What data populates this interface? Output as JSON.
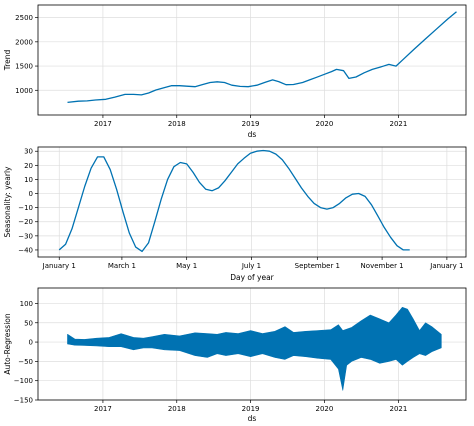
{
  "colors": {
    "line": "#0072b2",
    "fill": "#0072b2",
    "grid": "#dddddd",
    "axis": "#000000",
    "background": "#ffffff"
  },
  "chart_data": [
    {
      "type": "line",
      "xlabel": "ds",
      "ylabel": "Trend",
      "grid": true,
      "x_axis": "date",
      "xlim": [
        "2016-02-15",
        "2021-12-01"
      ],
      "ylim": [
        490,
        2760
      ],
      "xticks": [
        {
          "value": "2017-01-01",
          "label": "2017"
        },
        {
          "value": "2018-01-01",
          "label": "2018"
        },
        {
          "value": "2019-01-01",
          "label": "2019"
        },
        {
          "value": "2020-01-01",
          "label": "2020"
        },
        {
          "value": "2021-01-01",
          "label": "2021"
        }
      ],
      "yticks": [
        1000,
        1500,
        2000,
        2500
      ],
      "series": [
        {
          "points": [
            [
              "2016-07-10",
              750
            ],
            [
              "2016-09-01",
              775
            ],
            [
              "2016-10-15",
              780
            ],
            [
              "2016-11-25",
              800
            ],
            [
              "2017-01-15",
              815
            ],
            [
              "2017-03-01",
              860
            ],
            [
              "2017-04-20",
              915
            ],
            [
              "2017-06-01",
              915
            ],
            [
              "2017-07-10",
              905
            ],
            [
              "2017-08-15",
              945
            ],
            [
              "2017-09-20",
              1005
            ],
            [
              "2017-11-01",
              1055
            ],
            [
              "2017-12-05",
              1095
            ],
            [
              "2018-01-15",
              1095
            ],
            [
              "2018-02-20",
              1085
            ],
            [
              "2018-04-01",
              1075
            ],
            [
              "2018-05-10",
              1120
            ],
            [
              "2018-06-15",
              1160
            ],
            [
              "2018-07-20",
              1175
            ],
            [
              "2018-08-25",
              1160
            ],
            [
              "2018-09-30",
              1105
            ],
            [
              "2018-11-10",
              1080
            ],
            [
              "2018-12-20",
              1075
            ],
            [
              "2019-02-01",
              1105
            ],
            [
              "2019-03-15",
              1165
            ],
            [
              "2019-04-20",
              1215
            ],
            [
              "2019-05-20",
              1180
            ],
            [
              "2019-06-25",
              1115
            ],
            [
              "2019-08-01",
              1120
            ],
            [
              "2019-09-15",
              1160
            ],
            [
              "2019-10-20",
              1215
            ],
            [
              "2019-11-25",
              1270
            ],
            [
              "2020-01-01",
              1330
            ],
            [
              "2020-02-05",
              1385
            ],
            [
              "2020-03-01",
              1430
            ],
            [
              "2020-04-05",
              1405
            ],
            [
              "2020-05-01",
              1245
            ],
            [
              "2020-06-05",
              1275
            ],
            [
              "2020-07-15",
              1360
            ],
            [
              "2020-08-25",
              1430
            ],
            [
              "2020-10-05",
              1480
            ],
            [
              "2020-11-15",
              1535
            ],
            [
              "2020-12-20",
              1500
            ],
            [
              "2021-01-25",
              1640
            ],
            [
              "2021-03-20",
              1850
            ],
            [
              "2021-05-15",
              2060
            ],
            [
              "2021-07-10",
              2270
            ],
            [
              "2021-09-01",
              2470
            ],
            [
              "2021-10-15",
              2620
            ]
          ]
        }
      ]
    },
    {
      "type": "line",
      "xlabel": "Day of year",
      "ylabel": "Seasonality: yearly",
      "grid": true,
      "xlim": [
        -20,
        383
      ],
      "ylim": [
        -45,
        33
      ],
      "xticks": [
        {
          "value": 0,
          "label": "January 1"
        },
        {
          "value": 59,
          "label": "March 1"
        },
        {
          "value": 120,
          "label": "May 1"
        },
        {
          "value": 181,
          "label": "July 1"
        },
        {
          "value": 243,
          "label": "September 1"
        },
        {
          "value": 304,
          "label": "November 1"
        },
        {
          "value": 365,
          "label": "January 1"
        }
      ],
      "yticks": [
        -40,
        -30,
        -20,
        -10,
        0,
        10,
        20,
        30
      ],
      "series": [
        {
          "points": [
            [
              0,
              -40
            ],
            [
              6,
              -36
            ],
            [
              12,
              -25
            ],
            [
              18,
              -10
            ],
            [
              24,
              5
            ],
            [
              30,
              18
            ],
            [
              36,
              26
            ],
            [
              42,
              26
            ],
            [
              48,
              17
            ],
            [
              54,
              3
            ],
            [
              60,
              -13
            ],
            [
              66,
              -28
            ],
            [
              72,
              -38
            ],
            [
              78,
              -41
            ],
            [
              84,
              -35
            ],
            [
              90,
              -20
            ],
            [
              96,
              -4
            ],
            [
              102,
              10
            ],
            [
              108,
              19
            ],
            [
              114,
              22
            ],
            [
              120,
              21
            ],
            [
              126,
              15
            ],
            [
              132,
              8
            ],
            [
              138,
              3
            ],
            [
              144,
              2
            ],
            [
              150,
              4
            ],
            [
              156,
              9
            ],
            [
              162,
              15
            ],
            [
              168,
              21
            ],
            [
              174,
              25
            ],
            [
              180,
              28.5
            ],
            [
              186,
              30
            ],
            [
              192,
              30.5
            ],
            [
              198,
              30
            ],
            [
              204,
              28
            ],
            [
              210,
              24
            ],
            [
              216,
              18
            ],
            [
              222,
              11
            ],
            [
              228,
              4
            ],
            [
              234,
              -2
            ],
            [
              240,
              -7
            ],
            [
              246,
              -10
            ],
            [
              252,
              -11
            ],
            [
              258,
              -10
            ],
            [
              264,
              -7
            ],
            [
              270,
              -3
            ],
            [
              276,
              -0.5
            ],
            [
              282,
              0
            ],
            [
              288,
              -2
            ],
            [
              294,
              -8
            ],
            [
              300,
              -16
            ],
            [
              306,
              -24
            ],
            [
              312,
              -31
            ],
            [
              318,
              -37
            ],
            [
              324,
              -40
            ],
            [
              330,
              -40
            ]
          ]
        }
      ]
    },
    {
      "type": "area",
      "xlabel": "ds",
      "ylabel": "Auto-Regression",
      "grid": true,
      "x_axis": "date",
      "xlim": [
        "2016-02-15",
        "2021-12-01"
      ],
      "ylim": [
        -150,
        140
      ],
      "xticks": [
        {
          "value": "2017-01-01",
          "label": "2017"
        },
        {
          "value": "2018-01-01",
          "label": "2018"
        },
        {
          "value": "2019-01-01",
          "label": "2019"
        },
        {
          "value": "2020-01-01",
          "label": "2020"
        },
        {
          "value": "2021-01-01",
          "label": "2021"
        }
      ],
      "yticks": [
        -150,
        -100,
        -50,
        0,
        50,
        100
      ],
      "series": [
        {
          "upper": [
            [
              "2016-07-10",
              20
            ],
            [
              "2016-08-15",
              8
            ],
            [
              "2016-10-01",
              7
            ],
            [
              "2016-12-01",
              10
            ],
            [
              "2017-02-01",
              12
            ],
            [
              "2017-04-01",
              22
            ],
            [
              "2017-06-01",
              12
            ],
            [
              "2017-07-20",
              10
            ],
            [
              "2017-09-01",
              14
            ],
            [
              "2017-11-01",
              20
            ],
            [
              "2018-01-15",
              16
            ],
            [
              "2018-04-01",
              24
            ],
            [
              "2018-06-01",
              22
            ],
            [
              "2018-07-20",
              20
            ],
            [
              "2018-09-01",
              25
            ],
            [
              "2018-11-01",
              22
            ],
            [
              "2019-01-01",
              30
            ],
            [
              "2019-03-01",
              22
            ],
            [
              "2019-05-01",
              28
            ],
            [
              "2019-06-20",
              40
            ],
            [
              "2019-08-01",
              25
            ],
            [
              "2019-10-01",
              28
            ],
            [
              "2019-12-01",
              30
            ],
            [
              "2020-02-01",
              32
            ],
            [
              "2020-03-10",
              45
            ],
            [
              "2020-04-01",
              30
            ],
            [
              "2020-05-15",
              38
            ],
            [
              "2020-07-01",
              55
            ],
            [
              "2020-08-15",
              70
            ],
            [
              "2020-10-01",
              60
            ],
            [
              "2020-11-15",
              50
            ],
            [
              "2020-12-20",
              70
            ],
            [
              "2021-01-20",
              90
            ],
            [
              "2021-02-15",
              85
            ],
            [
              "2021-03-15",
              60
            ],
            [
              "2021-04-15",
              30
            ],
            [
              "2021-05-15",
              50
            ],
            [
              "2021-06-15",
              40
            ],
            [
              "2021-08-01",
              20
            ]
          ],
          "lower": [
            [
              "2016-07-10",
              -5
            ],
            [
              "2016-08-15",
              -8
            ],
            [
              "2016-10-01",
              -9
            ],
            [
              "2016-12-01",
              -10
            ],
            [
              "2017-02-01",
              -12
            ],
            [
              "2017-04-01",
              -12
            ],
            [
              "2017-06-01",
              -20
            ],
            [
              "2017-07-20",
              -15
            ],
            [
              "2017-09-01",
              -15
            ],
            [
              "2017-11-01",
              -20
            ],
            [
              "2018-01-15",
              -22
            ],
            [
              "2018-04-01",
              -35
            ],
            [
              "2018-06-01",
              -40
            ],
            [
              "2018-07-20",
              -30
            ],
            [
              "2018-09-01",
              -35
            ],
            [
              "2018-11-01",
              -30
            ],
            [
              "2019-01-01",
              -38
            ],
            [
              "2019-03-01",
              -30
            ],
            [
              "2019-05-01",
              -40
            ],
            [
              "2019-06-20",
              -45
            ],
            [
              "2019-08-01",
              -35
            ],
            [
              "2019-10-01",
              -38
            ],
            [
              "2019-12-01",
              -42
            ],
            [
              "2020-02-01",
              -45
            ],
            [
              "2020-03-10",
              -70
            ],
            [
              "2020-04-01",
              -125
            ],
            [
              "2020-04-20",
              -60
            ],
            [
              "2020-05-15",
              -50
            ],
            [
              "2020-07-01",
              -40
            ],
            [
              "2020-08-15",
              -45
            ],
            [
              "2020-10-01",
              -55
            ],
            [
              "2020-11-15",
              -50
            ],
            [
              "2020-12-20",
              -45
            ],
            [
              "2021-01-20",
              -60
            ],
            [
              "2021-02-15",
              -50
            ],
            [
              "2021-03-15",
              -40
            ],
            [
              "2021-04-15",
              -30
            ],
            [
              "2021-05-15",
              -35
            ],
            [
              "2021-06-15",
              -25
            ],
            [
              "2021-08-01",
              -15
            ]
          ]
        }
      ]
    }
  ]
}
